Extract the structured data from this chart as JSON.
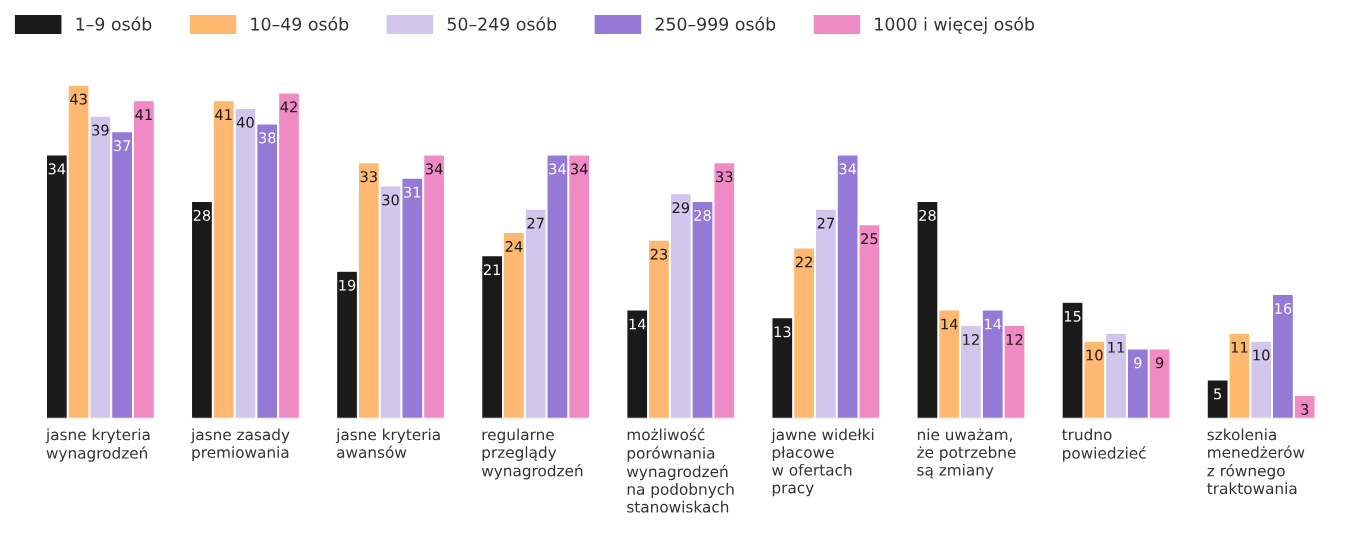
{
  "chart_data": {
    "type": "bar",
    "categories": [
      "jasne kryteria\nwynagrodzeń",
      "jasne zasady\npremiowania",
      "jasne kryteria\nawansów",
      "regularne\nprzeglądy\nwynagrodzeń",
      "możliwość\nporównania\nwynagrodzeń\nna podobnych\nstanowiskach",
      "jawne widełki\npłacowe\nw ofertach\npracy",
      "nie uważam,\nże potrzebne\nsą zmiany",
      "trudno\npowiedzieć",
      "szkolenia\nmenedżerów\nz równego\ntraktowania"
    ],
    "series": [
      {
        "name": "1–9 osób",
        "color": "#1a1a1a",
        "values": [
          34,
          28,
          19,
          21,
          14,
          13,
          28,
          15,
          5
        ]
      },
      {
        "name": "10–49 osób",
        "color": "#ffb870",
        "values": [
          43,
          41,
          33,
          24,
          23,
          22,
          14,
          10,
          11
        ]
      },
      {
        "name": "50–249 osób",
        "color": "#d2c6ec",
        "values": [
          39,
          40,
          30,
          27,
          29,
          27,
          12,
          11,
          10
        ]
      },
      {
        "name": "250–999 osób",
        "color": "#9479d6",
        "values": [
          37,
          38,
          31,
          34,
          28,
          34,
          14,
          9,
          16
        ]
      },
      {
        "name": "1000 i więcej osób",
        "color": "#f08ac4",
        "values": [
          41,
          42,
          34,
          34,
          33,
          25,
          12,
          9,
          3
        ]
      }
    ],
    "data_labels": true,
    "legend": "top left"
  }
}
